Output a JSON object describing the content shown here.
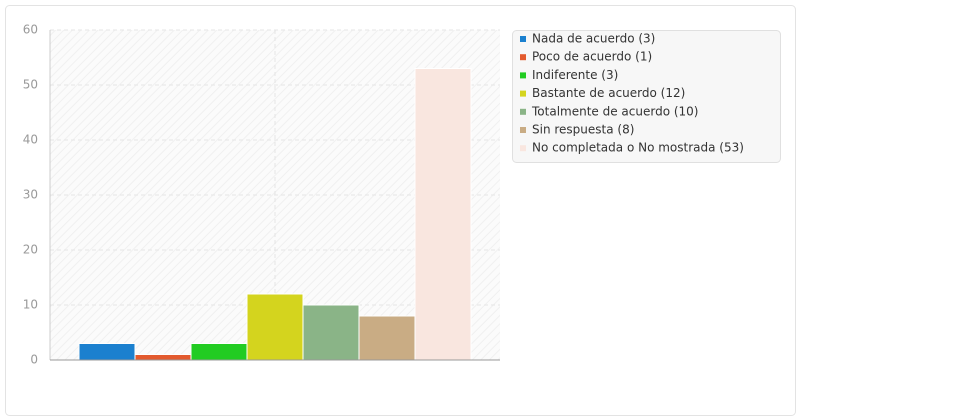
{
  "chart_data": {
    "type": "bar",
    "categories": [
      null
    ],
    "series": [
      {
        "name": "Nada de acuerdo (3)",
        "color": "#1b80cf",
        "values": [
          3
        ]
      },
      {
        "name": "Poco de acuerdo (1)",
        "color": "#e35a2e",
        "values": [
          1
        ]
      },
      {
        "name": "Indiferente (3)",
        "color": "#22cc22",
        "values": [
          3
        ]
      },
      {
        "name": "Bastante de acuerdo (12)",
        "color": "#d4d41e",
        "values": [
          12
        ]
      },
      {
        "name": "Totalmente de acuerdo (10)",
        "color": "#8ab487",
        "values": [
          10
        ]
      },
      {
        "name": "Sin respuesta (8)",
        "color": "#c9ac84",
        "values": [
          8
        ]
      },
      {
        "name": "No completada o No mostrada (53)",
        "color": "#f9e6df",
        "values": [
          53
        ]
      }
    ],
    "ylim": [
      0,
      60
    ],
    "yticks": [
      0,
      10,
      20,
      30,
      40,
      50,
      60
    ],
    "grid": true,
    "legend": "right"
  }
}
